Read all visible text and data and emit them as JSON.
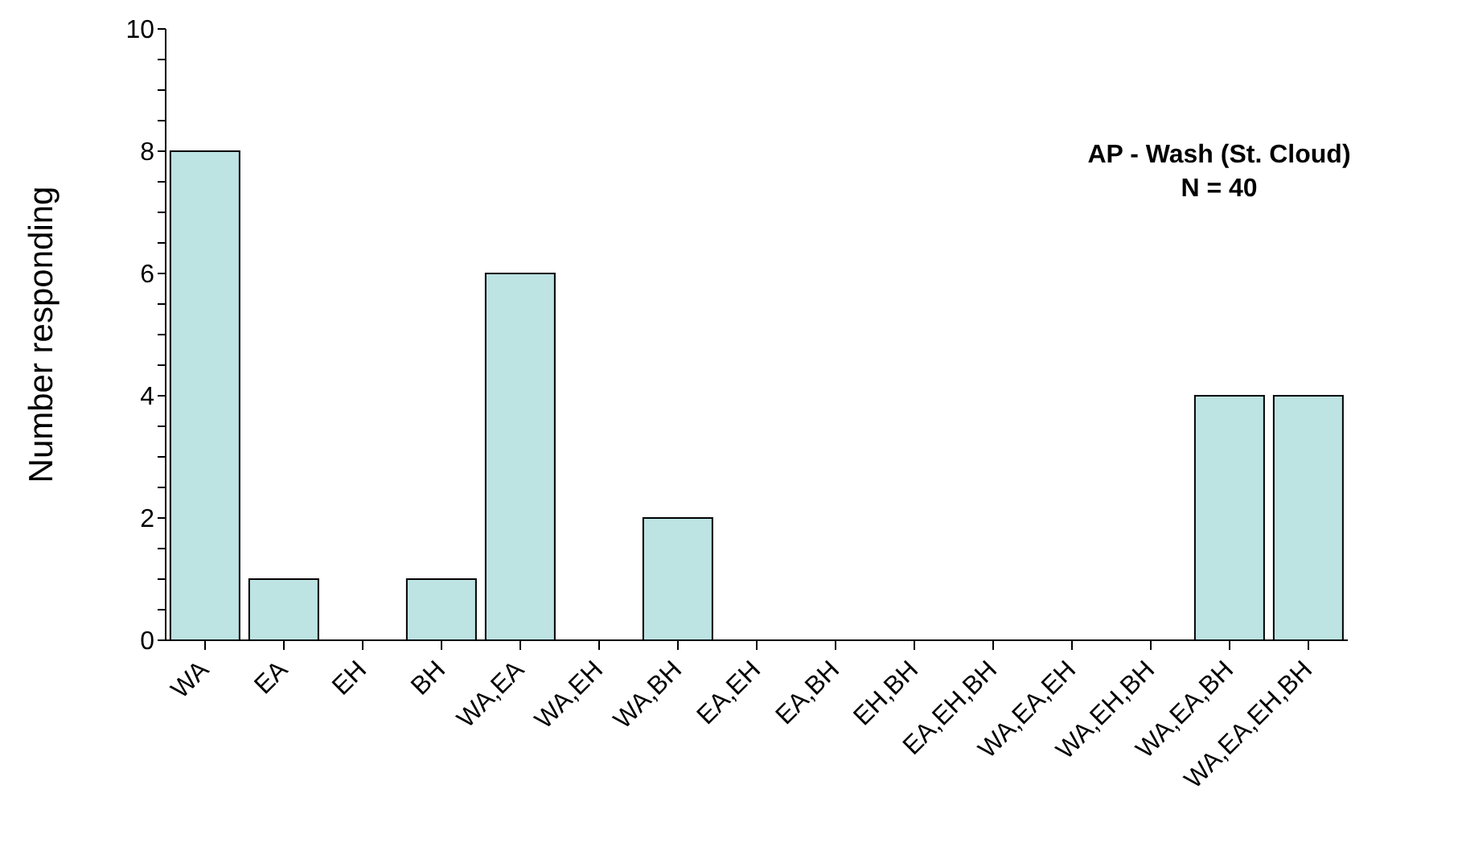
{
  "chart_data": {
    "type": "bar",
    "ylabel": "Number responding",
    "categories": [
      "WA",
      "EA",
      "EH",
      "BH",
      "WA,EA",
      "WA,EH",
      "WA,BH",
      "EA,EH",
      "EA,BH",
      "EH,BH",
      "EA,EH,BH",
      "WA,EA,EH",
      "WA,EH,BH",
      "WA,EA,BH",
      "WA,EA,EH,BH"
    ],
    "values": [
      8,
      1,
      0,
      1,
      6,
      0,
      2,
      0,
      0,
      0,
      0,
      0,
      0,
      4,
      4
    ],
    "color": "#bde3e3",
    "ylim": [
      0,
      10
    ],
    "yticks": [
      0,
      {
        "value": 0.5,
        "label": null
      },
      {
        "value": 1,
        "label": null
      },
      {
        "value": 1.5,
        "label": null
      },
      2,
      {
        "value": 2.5,
        "label": null
      },
      {
        "value": 3,
        "label": null
      },
      {
        "value": 3.5,
        "label": null
      },
      4,
      {
        "value": 4.5,
        "label": null
      },
      {
        "value": 5,
        "label": null
      },
      {
        "value": 5.5,
        "label": null
      },
      6,
      {
        "value": 6.5,
        "label": null
      },
      {
        "value": 7,
        "label": null
      },
      {
        "value": 7.5,
        "label": null
      },
      8,
      {
        "value": 8.5,
        "label": null
      },
      {
        "value": 9,
        "label": null
      },
      {
        "value": 9.5,
        "label": null
      },
      10
    ],
    "grid": false,
    "legend": false,
    "annotations": [
      "AP - Wash (St. Cloud)",
      "N = 40"
    ]
  }
}
